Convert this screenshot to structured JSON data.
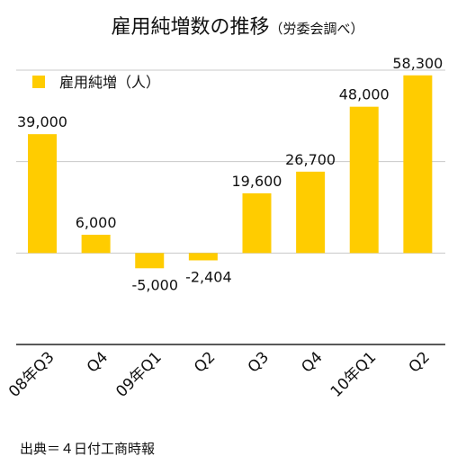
{
  "title": "雇用純増数の推移",
  "subtitle": "（労委会調べ）",
  "source": "出典＝４日付工商時報",
  "chart_data": {
    "type": "bar",
    "categories": [
      "08年Q3",
      "Q4",
      "09年Q1",
      "Q2",
      "Q3",
      "Q4",
      "10年Q1",
      "Q2"
    ],
    "series": [
      {
        "name": "雇用純増（人）",
        "values": [
          39000,
          6000,
          -5000,
          -2404,
          19600,
          26700,
          48000,
          58300
        ],
        "labels": [
          "39,000",
          "6,000",
          "-5,000",
          "-2,404",
          "19,600",
          "26,700",
          "48,000",
          "58,300"
        ]
      }
    ],
    "ylim": [
      -30000,
      60000
    ],
    "grid": true,
    "legend_position": "top-left",
    "colors": {
      "bar": "#FFCC00",
      "grid": "#c8c8c8",
      "axis": "#222222"
    }
  }
}
